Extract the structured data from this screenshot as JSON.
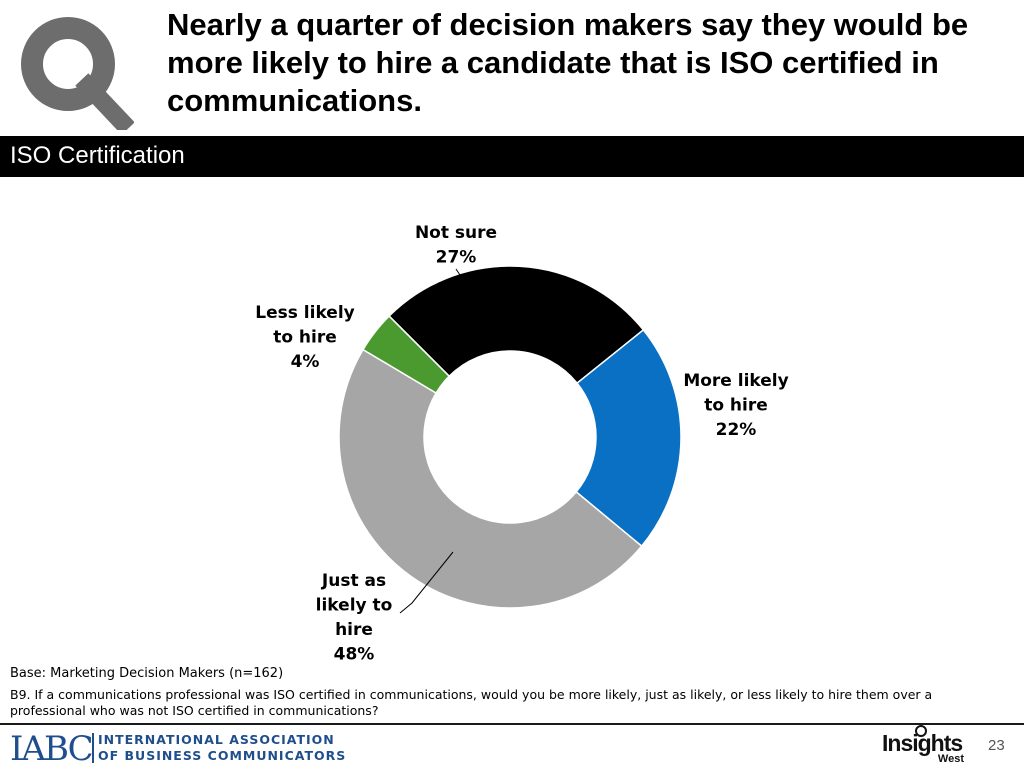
{
  "header": {
    "title": "Nearly a quarter of decision makers say they would be more likely to hire a candidate that is ISO certified in communications."
  },
  "section": {
    "label": "ISO Certification"
  },
  "chart_data": {
    "type": "pie",
    "donut": true,
    "categories": [
      "Not sure",
      "More likely to hire",
      "Just as likely to hire",
      "Less likely to hire"
    ],
    "values": [
      27,
      22,
      48,
      4
    ],
    "colors": [
      "#000000",
      "#0a70c4",
      "#a6a6a6",
      "#4a9a2f"
    ],
    "labels": [
      {
        "lines": [
          "Not sure"
        ],
        "value": "27%"
      },
      {
        "lines": [
          "More likely",
          "to hire"
        ],
        "value": "22%"
      },
      {
        "lines": [
          "Just as",
          "likely to",
          "hire"
        ],
        "value": "48%"
      },
      {
        "lines": [
          "Less likely",
          "to hire"
        ],
        "value": "4%"
      }
    ]
  },
  "notes": {
    "base": "Base: Marketing Decision Makers (n=162)",
    "question": "B9. If a communications professional was ISO certified in communications, would you be more likely, just as likely, or less likely to hire them over a professional who was not ISO certified in communications?"
  },
  "footer": {
    "iabc_logo": "IABC",
    "iabc_line1": "INTERNATIONAL ASSOCIATION",
    "iabc_line2": "OF BUSINESS COMMUNICATORS",
    "insights_logo": "Insights",
    "insights_sub": "West",
    "page_number": "23"
  },
  "icons": {
    "brand_mark": "magnifier-q-icon"
  }
}
